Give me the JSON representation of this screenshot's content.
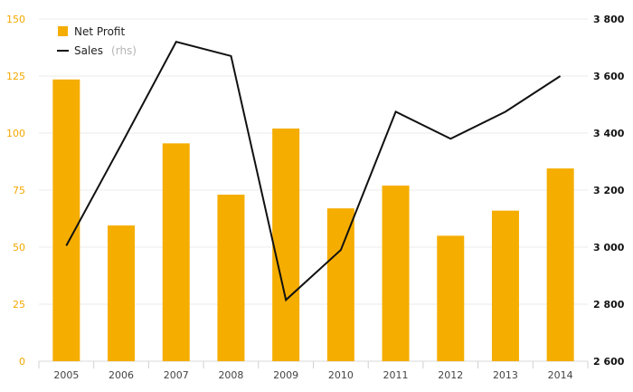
{
  "chart_data": {
    "type": "bar",
    "categories": [
      "2005",
      "2006",
      "2007",
      "2008",
      "2009",
      "2010",
      "2011",
      "2012",
      "2013",
      "2014"
    ],
    "series": [
      {
        "name": "Net Profit",
        "type": "bar",
        "axis": "left",
        "color": "#f5ad00",
        "values": [
          123.5,
          59.5,
          95.5,
          73,
          102,
          67,
          77,
          55,
          66,
          84.5
        ]
      },
      {
        "name": "Sales",
        "name_note": "(rhs)",
        "type": "line",
        "axis": "right",
        "color": "#111111",
        "values": [
          3005,
          3360,
          3720,
          3670,
          2815,
          2990,
          3475,
          3380,
          3475,
          3600
        ]
      }
    ],
    "y_left": {
      "lim": [
        0,
        150
      ],
      "ticks": [
        "0",
        "25",
        "50",
        "75",
        "100",
        "125",
        "150"
      ]
    },
    "y_right": {
      "lim": [
        2600,
        3800
      ],
      "ticks": [
        "2 600",
        "2 800",
        "3 000",
        "3 200",
        "3 400",
        "3 600",
        "3 800"
      ]
    },
    "grid": true,
    "legend_position": "top-left"
  }
}
